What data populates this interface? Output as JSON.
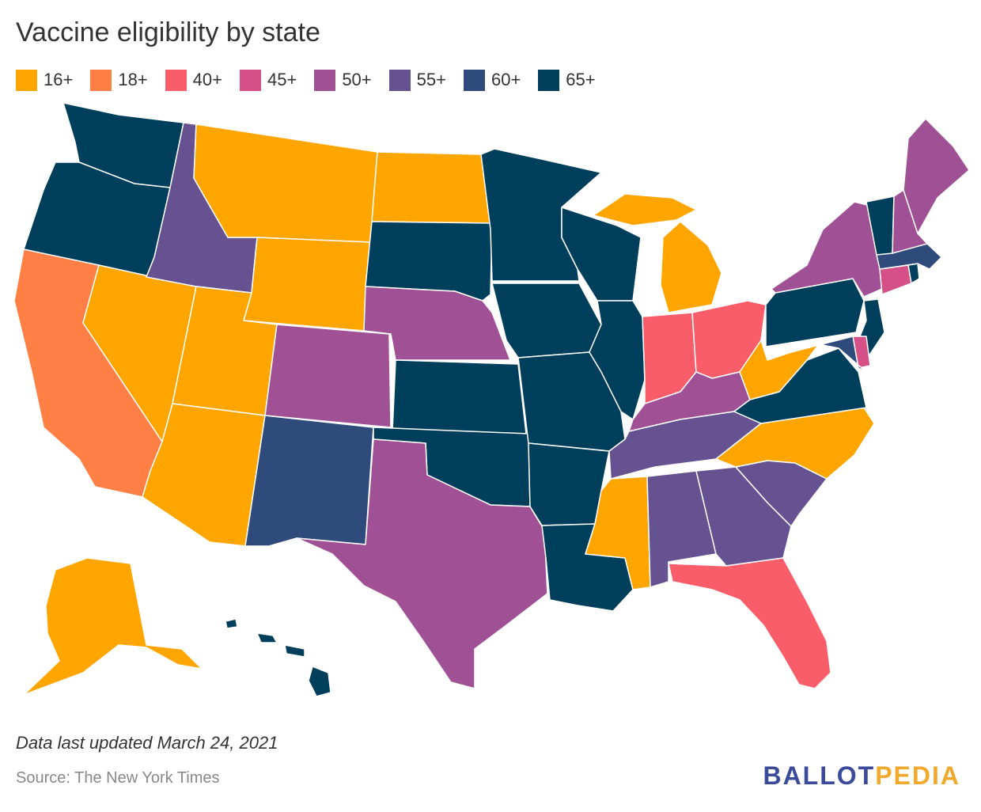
{
  "title": "Vaccine eligibility by state",
  "legend": [
    {
      "label": "16+",
      "color": "#ffa500"
    },
    {
      "label": "18+",
      "color": "#ff7f45"
    },
    {
      "label": "40+",
      "color": "#f95d6a"
    },
    {
      "label": "45+",
      "color": "#d45087"
    },
    {
      "label": "50+",
      "color": "#a05195"
    },
    {
      "label": "55+",
      "color": "#665191"
    },
    {
      "label": "60+",
      "color": "#2f4b7c"
    },
    {
      "label": "65+",
      "color": "#003f5c"
    }
  ],
  "states": [
    {
      "name": "WA",
      "group": "65+"
    },
    {
      "name": "OR",
      "group": "65+"
    },
    {
      "name": "CA",
      "group": "18+"
    },
    {
      "name": "NV",
      "group": "16+"
    },
    {
      "name": "ID",
      "group": "55+"
    },
    {
      "name": "MT",
      "group": "16+"
    },
    {
      "name": "WY",
      "group": "16+"
    },
    {
      "name": "UT",
      "group": "16+"
    },
    {
      "name": "AZ",
      "group": "16+"
    },
    {
      "name": "CO",
      "group": "50+"
    },
    {
      "name": "NM",
      "group": "60+"
    },
    {
      "name": "ND",
      "group": "16+"
    },
    {
      "name": "SD",
      "group": "65+"
    },
    {
      "name": "NE",
      "group": "50+"
    },
    {
      "name": "KS",
      "group": "65+"
    },
    {
      "name": "OK",
      "group": "65+"
    },
    {
      "name": "TX",
      "group": "50+"
    },
    {
      "name": "MN",
      "group": "65+"
    },
    {
      "name": "IA",
      "group": "65+"
    },
    {
      "name": "MO",
      "group": "65+"
    },
    {
      "name": "AR",
      "group": "65+"
    },
    {
      "name": "LA",
      "group": "65+"
    },
    {
      "name": "WI",
      "group": "65+"
    },
    {
      "name": "IL",
      "group": "65+"
    },
    {
      "name": "MI",
      "group": "16+"
    },
    {
      "name": "IN",
      "group": "40+"
    },
    {
      "name": "OH",
      "group": "40+"
    },
    {
      "name": "KY",
      "group": "50+"
    },
    {
      "name": "TN",
      "group": "55+"
    },
    {
      "name": "MS",
      "group": "16+"
    },
    {
      "name": "AL",
      "group": "55+"
    },
    {
      "name": "GA",
      "group": "55+"
    },
    {
      "name": "FL",
      "group": "40+"
    },
    {
      "name": "SC",
      "group": "55+"
    },
    {
      "name": "NC",
      "group": "16+"
    },
    {
      "name": "VA",
      "group": "65+"
    },
    {
      "name": "WV",
      "group": "16+"
    },
    {
      "name": "PA",
      "group": "65+"
    },
    {
      "name": "NY",
      "group": "50+"
    },
    {
      "name": "VT",
      "group": "65+"
    },
    {
      "name": "NH",
      "group": "50+"
    },
    {
      "name": "ME",
      "group": "50+"
    },
    {
      "name": "MA",
      "group": "60+"
    },
    {
      "name": "RI",
      "group": "65+"
    },
    {
      "name": "CT",
      "group": "45+"
    },
    {
      "name": "NJ",
      "group": "65+"
    },
    {
      "name": "DE",
      "group": "45+"
    },
    {
      "name": "MD",
      "group": "60+"
    },
    {
      "name": "AK",
      "group": "16+"
    },
    {
      "name": "HI",
      "group": "65+"
    }
  ],
  "footnote": "Data last updated March 24, 2021",
  "source": "Source: The New York Times",
  "logo": {
    "part1": "BALLOT",
    "part2": "PEDIA",
    "color1": "#3b4a9b",
    "color2": "#f0a92d"
  }
}
